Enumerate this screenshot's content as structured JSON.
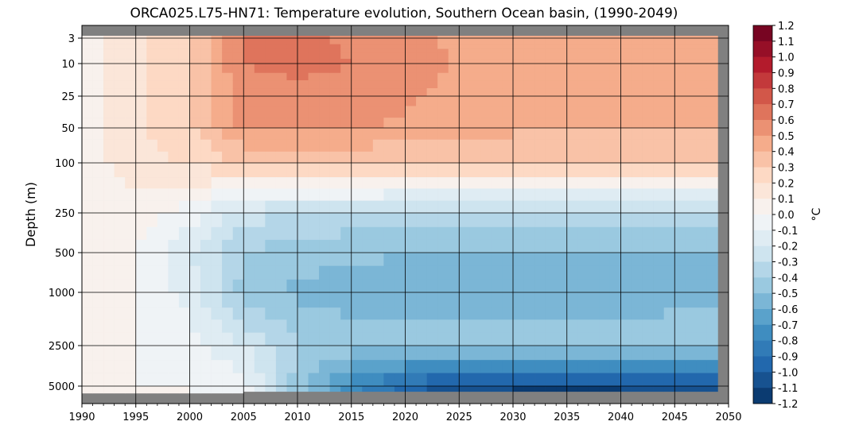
{
  "chart_data": {
    "type": "heatmap",
    "title": "ORCA025.L75-HN71: Temperature evolution, Southern Ocean basin, (1990-2049)",
    "xlabel": "",
    "ylabel": "Depth (m)",
    "xlim": [
      1990,
      2050
    ],
    "y_scale": "depth, stretched",
    "x_ticks": [
      1990,
      1995,
      2000,
      2005,
      2010,
      2015,
      2020,
      2025,
      2030,
      2035,
      2040,
      2045,
      2050
    ],
    "y_ticks": [
      3,
      10,
      25,
      50,
      100,
      250,
      500,
      1000,
      2500,
      5000
    ],
    "grid": true,
    "colorbar": {
      "label": "°C",
      "range": [
        -1.2,
        1.2
      ],
      "ticks": [
        "1.2",
        "1.1",
        "1.0",
        "0.9",
        "0.8",
        "0.7",
        "0.6",
        "0.5",
        "0.4",
        "0.3",
        "0.2",
        "0.1",
        "0.0",
        "-0.1",
        "-0.2",
        "-0.3",
        "-0.4",
        "-0.5",
        "-0.6",
        "-0.7",
        "-0.8",
        "-0.9",
        "-1.0",
        "-1.1",
        "-1.2"
      ],
      "colormap": [
        "#053061",
        "#2166ac",
        "#4393c3",
        "#92c5de",
        "#d1e5f0",
        "#f7f7f7",
        "#fddbc7",
        "#f4a582",
        "#d6604d",
        "#b2182b",
        "#67001f"
      ]
    },
    "depth_levels": [
      3,
      10,
      25,
      50,
      100,
      250,
      500,
      1000,
      2500,
      5000
    ],
    "years": [
      1990,
      1995,
      2000,
      2005,
      2010,
      2015,
      2020,
      2025,
      2030,
      2035,
      2040,
      2045,
      2049
    ],
    "values": [
      [
        0.05,
        0.18,
        0.3,
        0.62,
        0.64,
        0.58,
        0.54,
        0.48,
        0.44,
        0.4,
        0.4,
        0.4,
        0.4
      ],
      [
        0.05,
        0.18,
        0.3,
        0.6,
        0.62,
        0.6,
        0.56,
        0.48,
        0.44,
        0.4,
        0.4,
        0.4,
        0.4
      ],
      [
        0.04,
        0.18,
        0.3,
        0.56,
        0.58,
        0.56,
        0.52,
        0.46,
        0.42,
        0.4,
        0.4,
        0.4,
        0.4
      ],
      [
        0.04,
        0.18,
        0.28,
        0.52,
        0.54,
        0.52,
        0.48,
        0.44,
        0.42,
        0.4,
        0.4,
        0.4,
        0.4
      ],
      [
        0.04,
        0.16,
        0.22,
        0.3,
        0.3,
        0.3,
        0.3,
        0.3,
        0.3,
        0.3,
        0.3,
        0.3,
        0.3
      ],
      [
        0.03,
        0.05,
        -0.05,
        -0.25,
        -0.3,
        -0.32,
        -0.34,
        -0.35,
        -0.35,
        -0.35,
        -0.35,
        -0.35,
        -0.35
      ],
      [
        0.02,
        0.0,
        -0.2,
        -0.4,
        -0.46,
        -0.48,
        -0.5,
        -0.5,
        -0.5,
        -0.5,
        -0.5,
        -0.5,
        -0.5
      ],
      [
        0.02,
        0.0,
        -0.15,
        -0.44,
        -0.52,
        -0.54,
        -0.55,
        -0.55,
        -0.56,
        -0.56,
        -0.55,
        -0.55,
        -0.55
      ],
      [
        0.01,
        0.0,
        -0.05,
        -0.2,
        -0.4,
        -0.45,
        -0.45,
        -0.45,
        -0.45,
        -0.45,
        -0.45,
        -0.42,
        -0.4
      ],
      [
        0.0,
        0.0,
        0.0,
        -0.05,
        -0.45,
        -0.75,
        -0.95,
        -1.05,
        -1.1,
        -1.1,
        -1.1,
        -1.05,
        -1.0
      ]
    ],
    "nodata_color": "#808080"
  }
}
